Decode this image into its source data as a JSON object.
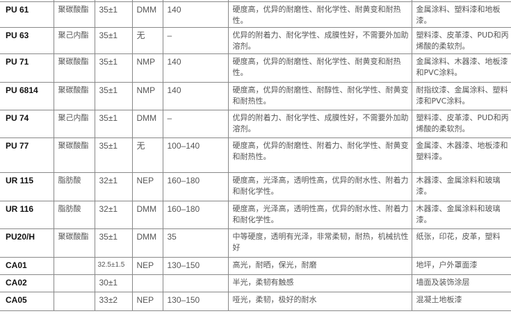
{
  "rows": [
    {
      "model": "PU 61",
      "type": "聚碳酸酯",
      "solid": "35±1",
      "solvent": "DMM",
      "value": "140",
      "features": "硬度高，优异的耐磨性、耐化学性、耐黄变和耐热性。",
      "applications": "金属涂料、塑料漆和地板漆。"
    },
    {
      "model": "PU 63",
      "type": "聚己内酯",
      "solid": "35±1",
      "solvent": "无",
      "value": "–",
      "features": "优异的附着力、耐化学性、成膜性好，不需要外加助溶剂。",
      "applications": "塑料漆、皮革漆、PUD和丙烯酸的柔软剂。"
    },
    {
      "model": "PU 71",
      "type": "聚碳酸酯",
      "solid": "35±1",
      "solvent": "NMP",
      "value": "140",
      "features": "硬度高，优异的耐磨性、耐化学性、耐黄变和耐热性。",
      "applications": "金属涂料、木器漆、地板漆和PVC涂料。"
    },
    {
      "model": "PU 6814",
      "type": "聚碳酸酯",
      "solid": "35±1",
      "solvent": "NMP",
      "value": "140",
      "features": "硬度高，优异的耐磨性、耐醇性、耐化学性、耐黄变和耐热性。",
      "applications": "耐指纹漆、金属涂料、塑料漆和PVC涂料。"
    },
    {
      "model": "PU 74",
      "type": "聚己内酯",
      "solid": "35±1",
      "solvent": "DMM",
      "value": "–",
      "features": "优异的附着力、耐化学性、成膜性好，不需要外加助溶剂。",
      "applications": "塑料漆、皮革漆、PUD和丙烯酸的柔软剂。"
    },
    {
      "model": "PU 77",
      "type": "聚碳酸酯",
      "solid": "35±1",
      "solvent": "无",
      "value": "100–140",
      "features": "硬度高，优异的耐磨性、附着力、耐化学性、耐黄变和耐热性。",
      "applications": "金属漆、木器漆、地板漆和塑料漆。"
    },
    {
      "model": "UR 115",
      "type": "脂肪酸",
      "solid": "32±1",
      "solvent": "NEP",
      "value": "160–180",
      "features": "硬度高，光泽高，透明性高，优异的耐水性、附着力和耐化学性。",
      "applications": "木器漆、金属涂料和玻璃漆。"
    },
    {
      "model": "UR 116",
      "type": "脂肪酸",
      "solid": "32±1",
      "solvent": "DMM",
      "value": "160–180",
      "features": "硬度高，光泽高，透明性高，优异的耐水性、附着力和耐化学性。",
      "applications": "木器漆、金属涂料和玻璃漆。"
    },
    {
      "model": "PU20/H",
      "type": "聚碳酸酯",
      "solid": "35±1",
      "solvent": "DMM",
      "value": "35",
      "features": "中等硬度，透明有光泽，非常柔韧，耐热，机械抗性好",
      "applications": "纸张，印花，皮革，塑料"
    },
    {
      "model": "CA01",
      "type": "",
      "solid": "32.5±1.5",
      "solvent": "NEP",
      "value": "130–150",
      "features": "高光，耐晒，保光，耐磨",
      "applications": "地坪，户外罩面漆"
    },
    {
      "model": "CA02",
      "type": "",
      "solid": "30±1",
      "solvent": "",
      "value": "",
      "features": "半光，柔韧有触感",
      "applications": "墙面及装饰涂层"
    },
    {
      "model": "CA05",
      "type": "",
      "solid": "33±2",
      "solvent": "NEP",
      "value": "130–150",
      "features": "哑光，柔韧，极好的耐水",
      "applications": "混凝土地板漆"
    }
  ]
}
